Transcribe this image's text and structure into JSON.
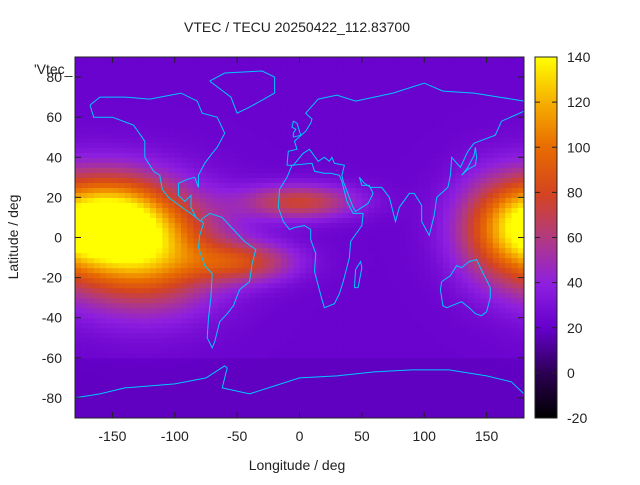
{
  "chart_data": {
    "type": "heatmap",
    "title": "VTEC / TECU 20250422_112.83700",
    "xlabel": "Longitude / deg",
    "ylabel": "Latitude / deg",
    "series_label": "'Vtec_",
    "xlim": [
      -180,
      180
    ],
    "ylim": [
      -90,
      90
    ],
    "x_ticks": [
      -150,
      -100,
      -50,
      0,
      50,
      100,
      150
    ],
    "y_ticks": [
      -80,
      -60,
      -40,
      -20,
      0,
      20,
      40,
      60,
      80
    ],
    "colorbar": {
      "range": [
        -20,
        140
      ],
      "ticks": [
        -20,
        0,
        20,
        40,
        60,
        80,
        100,
        120,
        140
      ]
    },
    "features": [
      {
        "lon": -125,
        "lat": -5,
        "vtec": 120,
        "sx": 42,
        "sy": 20
      },
      {
        "lon": -150,
        "lat": 10,
        "vtec": 95,
        "sx": 30,
        "sy": 15
      },
      {
        "lon": 165,
        "lat": 5,
        "vtec": 90,
        "sx": 28,
        "sy": 18
      },
      {
        "lon": -45,
        "lat": -12,
        "vtec": 72,
        "sx": 30,
        "sy": 7
      },
      {
        "lon": 0,
        "lat": 18,
        "vtec": 75,
        "sx": 32,
        "sy": 6
      }
    ],
    "background_vtec": 22
  }
}
